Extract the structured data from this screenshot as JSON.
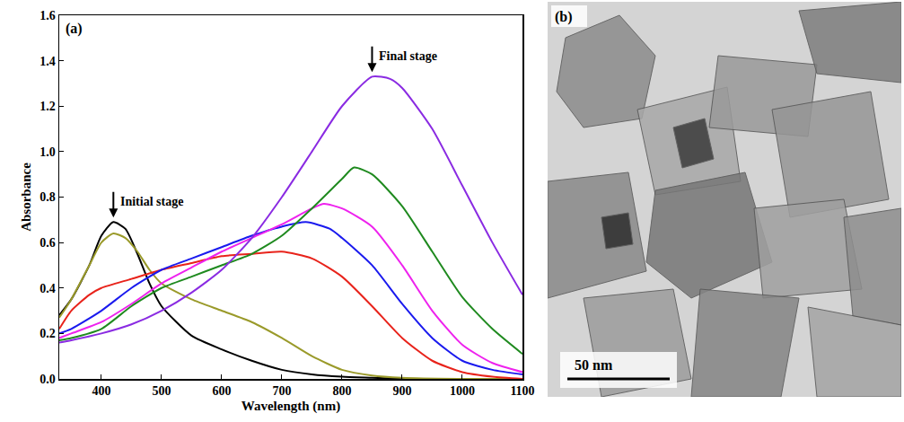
{
  "chart_data": {
    "type": "line",
    "panel_label": "(a)",
    "x_label": "Wavelength (nm)",
    "y_label": "Absorbance",
    "annotations": [
      "Initial stage",
      "Final stage"
    ],
    "xlim": [
      330,
      1100
    ],
    "xticks": [
      400,
      500,
      600,
      700,
      800,
      900,
      1000,
      1100
    ],
    "ylim": [
      0,
      1.6
    ],
    "yticks": [
      {
        "value": 0,
        "label": "0.0"
      },
      {
        "value": 0.2,
        "label": "0.2"
      },
      {
        "value": 0.4,
        "label": "0.4"
      },
      {
        "value": 0.6,
        "label": "0.6"
      },
      {
        "value": 0.8,
        "label": "0.8"
      },
      {
        "value": 1.0,
        "label": "1.0"
      },
      {
        "value": 1.2,
        "label": "1.2"
      },
      {
        "value": 1.4,
        "label": "1.4"
      },
      {
        "value": 1.6,
        "label": "1.6"
      }
    ],
    "grid": false,
    "series": [
      {
        "color": "#000000",
        "x": [
          330,
          350,
          380,
          400,
          420,
          440,
          460,
          480,
          500,
          550,
          600,
          650,
          700,
          750,
          800,
          850,
          900,
          1000,
          1100
        ],
        "values": [
          0.28,
          0.35,
          0.5,
          0.63,
          0.69,
          0.66,
          0.55,
          0.42,
          0.32,
          0.19,
          0.13,
          0.08,
          0.04,
          0.02,
          0.01,
          0.005,
          0,
          0,
          0
        ]
      },
      {
        "color": "#9a9a2a",
        "x": [
          330,
          350,
          380,
          400,
          420,
          440,
          460,
          480,
          500,
          550,
          600,
          650,
          700,
          750,
          800,
          850,
          900,
          1000,
          1100
        ],
        "values": [
          0.27,
          0.35,
          0.5,
          0.6,
          0.64,
          0.62,
          0.56,
          0.48,
          0.42,
          0.35,
          0.3,
          0.25,
          0.18,
          0.1,
          0.04,
          0.015,
          0.005,
          0,
          0
        ]
      },
      {
        "color": "#e8231b",
        "x": [
          330,
          350,
          380,
          400,
          450,
          500,
          550,
          600,
          650,
          700,
          750,
          800,
          850,
          900,
          950,
          1000,
          1050,
          1100
        ],
        "values": [
          0.22,
          0.3,
          0.37,
          0.4,
          0.44,
          0.48,
          0.51,
          0.54,
          0.55,
          0.56,
          0.53,
          0.45,
          0.32,
          0.18,
          0.08,
          0.03,
          0.01,
          0
        ]
      },
      {
        "color": "#1a1aee",
        "x": [
          330,
          350,
          400,
          450,
          500,
          550,
          600,
          650,
          700,
          740,
          780,
          800,
          850,
          900,
          950,
          1000,
          1050,
          1100
        ],
        "values": [
          0.2,
          0.22,
          0.3,
          0.4,
          0.48,
          0.53,
          0.58,
          0.63,
          0.67,
          0.69,
          0.66,
          0.62,
          0.5,
          0.33,
          0.18,
          0.08,
          0.04,
          0.02
        ]
      },
      {
        "color": "#ee22ee",
        "x": [
          330,
          350,
          400,
          450,
          500,
          550,
          600,
          650,
          700,
          750,
          770,
          800,
          850,
          900,
          950,
          1000,
          1050,
          1100
        ],
        "values": [
          0.18,
          0.2,
          0.25,
          0.33,
          0.42,
          0.49,
          0.56,
          0.62,
          0.68,
          0.75,
          0.77,
          0.75,
          0.67,
          0.5,
          0.3,
          0.15,
          0.07,
          0.03
        ]
      },
      {
        "color": "#1f8a1f",
        "x": [
          330,
          350,
          400,
          450,
          500,
          550,
          600,
          650,
          700,
          750,
          800,
          820,
          850,
          900,
          950,
          1000,
          1050,
          1100
        ],
        "values": [
          0.17,
          0.18,
          0.22,
          0.32,
          0.4,
          0.45,
          0.5,
          0.55,
          0.63,
          0.75,
          0.88,
          0.93,
          0.9,
          0.76,
          0.56,
          0.36,
          0.22,
          0.11
        ]
      },
      {
        "color": "#8a2be2",
        "x": [
          330,
          350,
          400,
          450,
          500,
          550,
          600,
          650,
          700,
          750,
          800,
          850,
          880,
          900,
          950,
          1000,
          1050,
          1100
        ],
        "values": [
          0.16,
          0.17,
          0.2,
          0.24,
          0.3,
          0.38,
          0.48,
          0.62,
          0.8,
          1.0,
          1.2,
          1.33,
          1.32,
          1.28,
          1.1,
          0.85,
          0.6,
          0.37
        ]
      }
    ]
  },
  "image_panel": {
    "label": "(b)",
    "scale_bar": "50 nm"
  }
}
